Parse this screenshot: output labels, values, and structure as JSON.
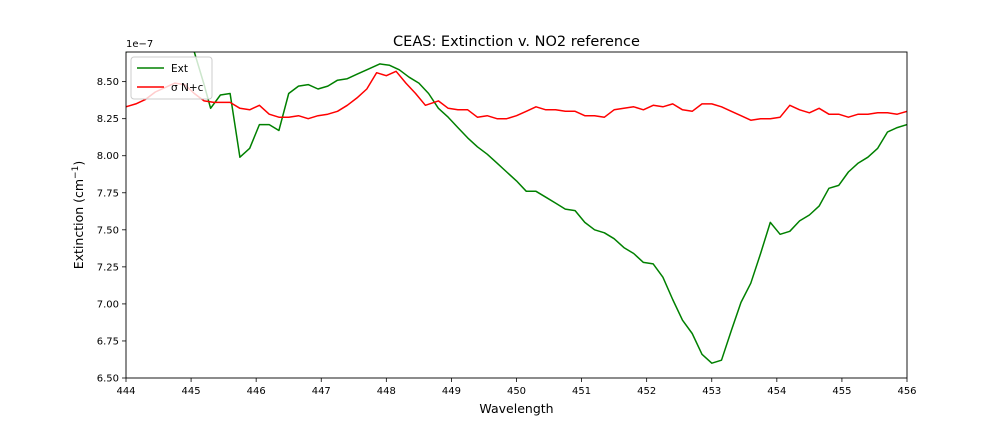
{
  "chart_data": {
    "type": "line",
    "title": "CEAS: Extinction v. NO2 reference",
    "xlabel": "Wavelength",
    "ylabel": "Extinction (cm",
    "ylabel_sup": "−1",
    "ylabel_close": ")",
    "offset_text": "1e−7",
    "xlim": [
      444,
      456
    ],
    "ylim": [
      6.5,
      8.7
    ],
    "x_ticks": [
      444,
      445,
      446,
      447,
      448,
      449,
      450,
      451,
      452,
      453,
      454,
      455,
      456
    ],
    "x_tick_labels": [
      "444",
      "445",
      "446",
      "447",
      "448",
      "449",
      "450",
      "451",
      "452",
      "453",
      "454",
      "455",
      "456"
    ],
    "y_ticks": [
      6.5,
      6.75,
      7.0,
      7.25,
      7.5,
      7.75,
      8.0,
      8.25,
      8.5
    ],
    "y_tick_labels": [
      "6.50",
      "6.75",
      "7.00",
      "7.25",
      "7.50",
      "7.75",
      "8.00",
      "8.25",
      "8.50"
    ],
    "legend_position": "top-left",
    "series": [
      {
        "name": "Ext",
        "color": "#008000",
        "x": [
          444.0,
          444.15,
          444.3,
          444.45,
          444.6,
          444.75,
          444.9,
          445.05,
          445.2,
          445.3,
          445.45,
          445.6,
          445.75,
          445.9,
          446.05,
          446.2,
          446.35,
          446.5,
          446.65,
          446.8,
          446.95,
          447.1,
          447.25,
          447.4,
          447.55,
          447.7,
          447.9,
          448.05,
          448.2,
          448.35,
          448.5,
          448.65,
          448.8,
          448.95,
          449.1,
          449.25,
          449.4,
          449.55,
          449.7,
          449.85,
          450.0,
          450.15,
          450.3,
          450.45,
          450.6,
          450.75,
          450.9,
          451.05,
          451.2,
          451.35,
          451.5,
          451.65,
          451.8,
          451.95,
          452.1,
          452.25,
          452.4,
          452.55,
          452.7,
          452.85,
          453.0,
          453.15,
          453.3,
          453.45,
          453.6,
          453.75,
          453.9,
          454.05,
          454.2,
          454.35,
          454.5,
          454.65,
          454.8,
          454.95,
          455.1,
          455.25,
          455.4,
          455.55,
          455.7,
          455.85,
          456.0
        ],
        "y": [
          8.7,
          8.72,
          8.74,
          8.76,
          8.78,
          8.8,
          8.77,
          8.7,
          8.48,
          8.32,
          8.41,
          8.42,
          7.99,
          8.05,
          8.21,
          8.21,
          8.17,
          8.42,
          8.47,
          8.48,
          8.45,
          8.47,
          8.51,
          8.52,
          8.55,
          8.58,
          8.62,
          8.61,
          8.58,
          8.53,
          8.49,
          8.42,
          8.32,
          8.26,
          8.19,
          8.12,
          8.06,
          8.01,
          7.95,
          7.89,
          7.83,
          7.76,
          7.76,
          7.72,
          7.68,
          7.64,
          7.63,
          7.55,
          7.5,
          7.48,
          7.44,
          7.38,
          7.34,
          7.28,
          7.27,
          7.18,
          7.03,
          6.89,
          6.8,
          6.66,
          6.6,
          6.62,
          6.82,
          7.01,
          7.14,
          7.34,
          7.55,
          7.47,
          7.49,
          7.56,
          7.6,
          7.66,
          7.78,
          7.8,
          7.89,
          7.95,
          7.99,
          8.05,
          8.16,
          8.19,
          8.21
        ]
      },
      {
        "name": "σ N+c",
        "color": "#ff0000",
        "x": [
          444.0,
          444.15,
          444.3,
          444.45,
          444.6,
          444.75,
          444.9,
          445.05,
          445.2,
          445.35,
          445.5,
          445.6,
          445.75,
          445.9,
          446.05,
          446.2,
          446.35,
          446.5,
          446.65,
          446.8,
          446.95,
          447.1,
          447.25,
          447.4,
          447.55,
          447.7,
          447.85,
          448.0,
          448.15,
          448.3,
          448.45,
          448.6,
          448.8,
          448.95,
          449.1,
          449.25,
          449.4,
          449.55,
          449.7,
          449.85,
          450.0,
          450.15,
          450.3,
          450.45,
          450.6,
          450.75,
          450.9,
          451.05,
          451.2,
          451.35,
          451.5,
          451.65,
          451.8,
          451.95,
          452.1,
          452.25,
          452.4,
          452.55,
          452.7,
          452.85,
          453.0,
          453.15,
          453.3,
          453.45,
          453.6,
          453.75,
          453.9,
          454.05,
          454.2,
          454.35,
          454.5,
          454.65,
          454.8,
          454.95,
          455.1,
          455.25,
          455.4,
          455.55,
          455.7,
          455.85,
          456.0
        ],
        "y": [
          8.33,
          8.35,
          8.38,
          8.43,
          8.46,
          8.49,
          8.48,
          8.42,
          8.37,
          8.36,
          8.36,
          8.36,
          8.32,
          8.31,
          8.34,
          8.28,
          8.26,
          8.26,
          8.27,
          8.25,
          8.27,
          8.28,
          8.3,
          8.34,
          8.39,
          8.45,
          8.56,
          8.54,
          8.57,
          8.49,
          8.42,
          8.34,
          8.37,
          8.32,
          8.31,
          8.31,
          8.26,
          8.27,
          8.25,
          8.25,
          8.27,
          8.3,
          8.33,
          8.31,
          8.31,
          8.3,
          8.3,
          8.27,
          8.27,
          8.26,
          8.31,
          8.32,
          8.33,
          8.31,
          8.34,
          8.33,
          8.35,
          8.31,
          8.3,
          8.35,
          8.35,
          8.33,
          8.3,
          8.27,
          8.24,
          8.25,
          8.25,
          8.26,
          8.34,
          8.31,
          8.29,
          8.32,
          8.28,
          8.28,
          8.26,
          8.28,
          8.28,
          8.29,
          8.29,
          8.28,
          8.3
        ]
      }
    ]
  }
}
